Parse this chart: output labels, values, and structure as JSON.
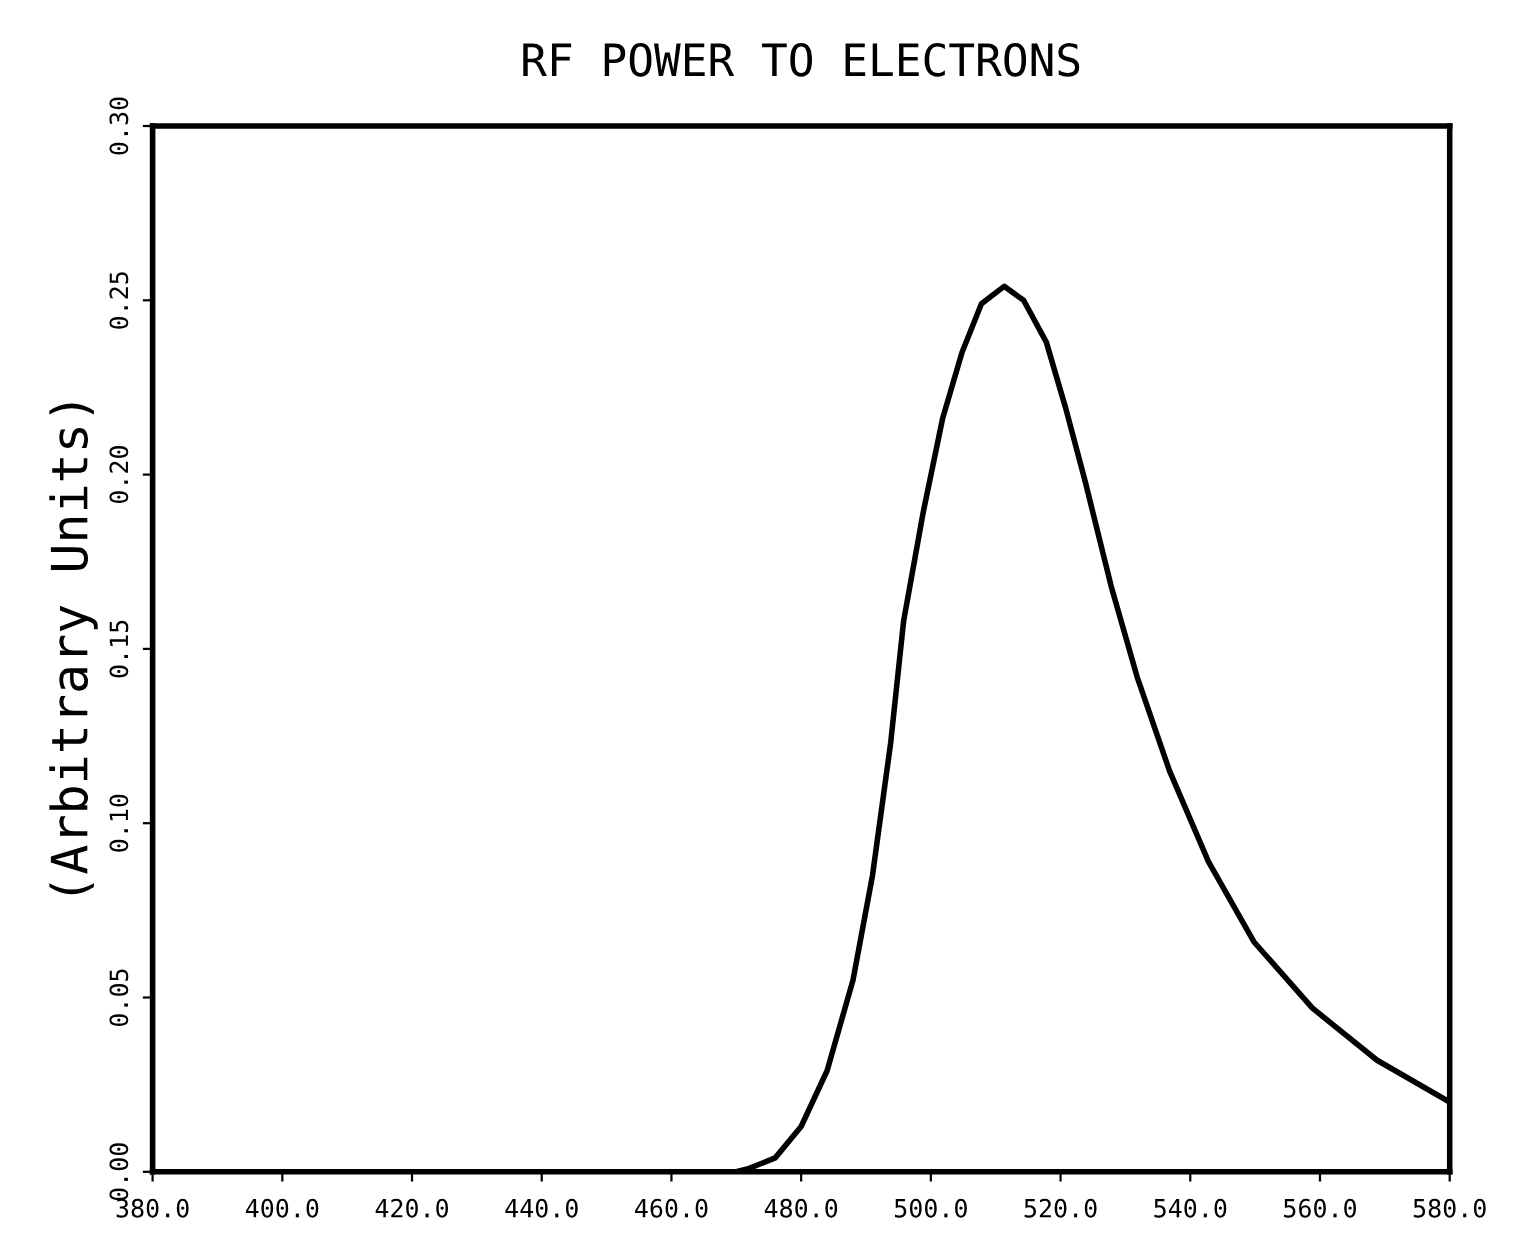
{
  "chart_data": {
    "type": "line",
    "title": "RF POWER TO ELECTRONS",
    "ylabel": "(Arbitrary Units)",
    "x": [
      470,
      472,
      476,
      480,
      484,
      488,
      491,
      493.8,
      495.8,
      498.8,
      501.8,
      504.8,
      507.8,
      511.3,
      514.3,
      517.8,
      520.8,
      523.8,
      527.8,
      531.8,
      536.8,
      542.8,
      549.8,
      558.8,
      568.8,
      580
    ],
    "series": [
      {
        "color": "#000000",
        "values": [
          0.0,
          0.001,
          0.004,
          0.013,
          0.029,
          0.055,
          0.085,
          0.123,
          0.158,
          0.189,
          0.216,
          0.235,
          0.249,
          0.254,
          0.25,
          0.238,
          0.219,
          0.198,
          0.168,
          0.142,
          0.115,
          0.089,
          0.066,
          0.047,
          0.032,
          0.02
        ]
      }
    ],
    "xlim": [
      380,
      580
    ],
    "ylim": [
      0,
      0.3
    ],
    "xticks": [
      {
        "value": 380,
        "label": "380.0"
      },
      {
        "value": 400,
        "label": "400.0"
      },
      {
        "value": 420,
        "label": "420.0"
      },
      {
        "value": 440,
        "label": "440.0"
      },
      {
        "value": 460,
        "label": "460.0"
      },
      {
        "value": 480,
        "label": "480.0"
      },
      {
        "value": 500,
        "label": "500.0"
      },
      {
        "value": 520,
        "label": "520.0"
      },
      {
        "value": 540,
        "label": "540.0"
      },
      {
        "value": 560,
        "label": "560.0"
      },
      {
        "value": 580,
        "label": "580.0"
      }
    ],
    "yticks": [
      {
        "value": 0,
        "label": "0.00"
      },
      {
        "value": 0.05,
        "label": "0.05"
      },
      {
        "value": 0.1,
        "label": "0.10"
      },
      {
        "value": 0.15,
        "label": "0.15"
      },
      {
        "value": 0.2,
        "label": "0.20"
      },
      {
        "value": 0.25,
        "label": "0.25"
      },
      {
        "value": 0.3,
        "label": "0.30"
      }
    ],
    "grid": false,
    "legend": false
  }
}
